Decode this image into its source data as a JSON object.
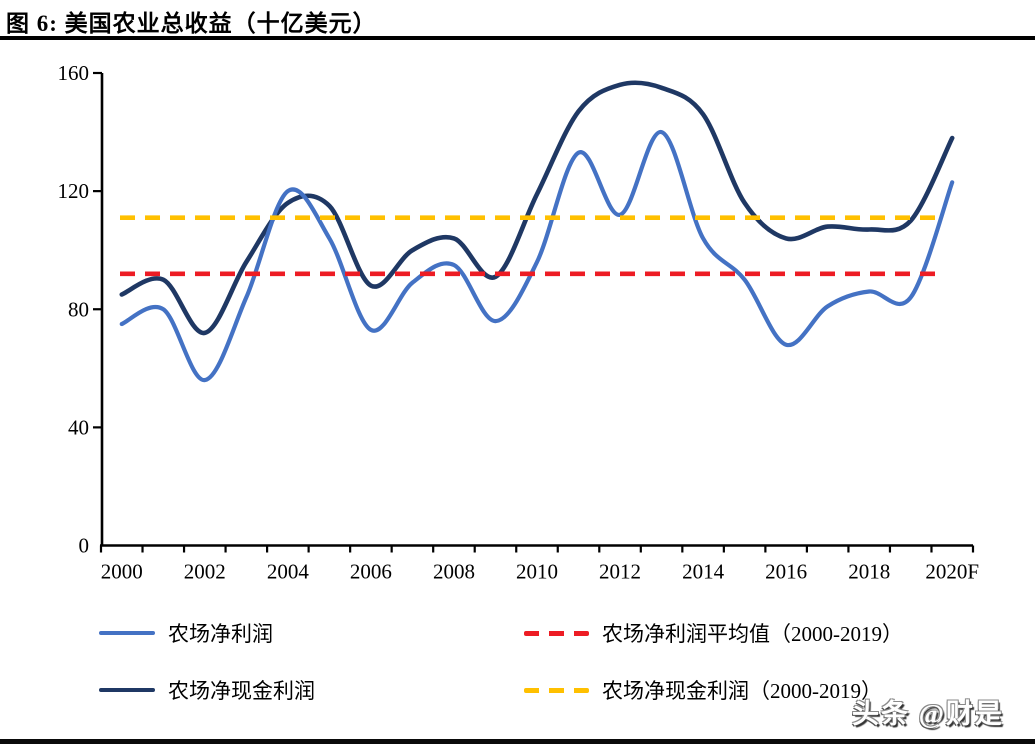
{
  "header": {
    "title": "图 6:  美国农业总收益（十亿美元）"
  },
  "watermark": {
    "text": "头条 @财是"
  },
  "legend": {
    "items": [
      {
        "label": "农场净利润",
        "color": "#4472C4",
        "style": "solid"
      },
      {
        "label": "农场净现金利润",
        "color": "#1F3864",
        "style": "solid"
      },
      {
        "label": "农场净利润平均值（2000-2019）",
        "color": "#ED1C24",
        "style": "dashed"
      },
      {
        "label": "农场净现金利润（2000-2019）",
        "color": "#FFC000",
        "style": "dashed"
      }
    ]
  },
  "chart_data": {
    "type": "line",
    "title": "美国农业总收益（十亿美元）",
    "categories": [
      "2000",
      "2001",
      "2002",
      "2003",
      "2004",
      "2005",
      "2006",
      "2007",
      "2008",
      "2009",
      "2010",
      "2011",
      "2012",
      "2013",
      "2014",
      "2015",
      "2016",
      "2017",
      "2018",
      "2019",
      "2020F"
    ],
    "x_ticklabels": [
      "2000",
      "2002",
      "2004",
      "2006",
      "2008",
      "2010",
      "2012",
      "2014",
      "2016",
      "2018",
      "2020F"
    ],
    "series": [
      {
        "name": "农场净利润",
        "color": "#4472C4",
        "values": [
          75,
          80,
          56,
          84,
          120,
          104,
          73,
          89,
          95,
          76,
          96,
          133,
          112,
          140,
          104,
          90,
          68,
          81,
          86,
          84,
          123
        ]
      },
      {
        "name": "农场净现金利润",
        "color": "#1F3864",
        "values": [
          85,
          90,
          72,
          96,
          116,
          115,
          88,
          100,
          104,
          91,
          119,
          147,
          156,
          155,
          146,
          116,
          104,
          108,
          107,
          110,
          138
        ]
      }
    ],
    "ref_lines": [
      {
        "name": "农场净利润平均值（2000-2019）",
        "value": 92,
        "color": "#ED1C24",
        "style": "dashed"
      },
      {
        "name": "农场净现金利润（2000-2019）",
        "value": 111,
        "color": "#FFC000",
        "style": "dashed"
      }
    ],
    "ylim": [
      0,
      160
    ],
    "y_ticks": [
      0,
      40,
      80,
      120,
      160
    ],
    "grid": false,
    "legend_position": "bottom",
    "axis_color": "#000000"
  }
}
